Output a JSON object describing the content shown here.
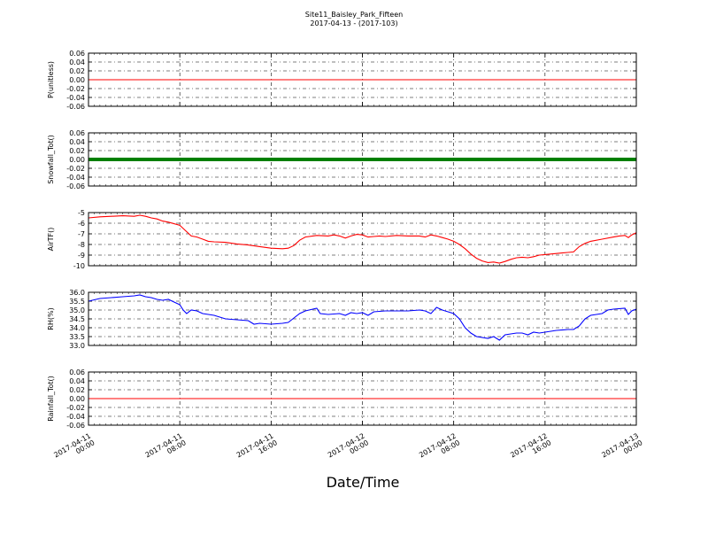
{
  "figure": {
    "title_line1": "Site11_Baisley_Park_Fifteen",
    "title_line2": "2017-04-13 - (2017-103)",
    "xlabel": "Date/Time"
  },
  "chart_data": {
    "type": "line",
    "x_range": [
      "2017-04-11 00:00",
      "2017-04-13 00:00"
    ],
    "x_ticks": [
      {
        "line1": "2017-04-11",
        "line2": "00:00",
        "hours": 0
      },
      {
        "line1": "2017-04-11",
        "line2": "08:00",
        "hours": 8
      },
      {
        "line1": "2017-04-11",
        "line2": "16:00",
        "hours": 16
      },
      {
        "line1": "2017-04-12",
        "line2": "00:00",
        "hours": 24
      },
      {
        "line1": "2017-04-12",
        "line2": "08:00",
        "hours": 32
      },
      {
        "line1": "2017-04-12",
        "line2": "16:00",
        "hours": 40
      },
      {
        "line1": "2017-04-13",
        "line2": "00:00",
        "hours": 48
      }
    ],
    "panels": [
      {
        "ylabel": "P(unitless)",
        "ylim": [
          -0.06,
          0.06
        ],
        "yticks": [
          "0.06",
          "0.04",
          "0.02",
          "0.00",
          "-0.02",
          "-0.04",
          "-0.06"
        ],
        "color": "#ff0000",
        "style": "line",
        "series": [
          [
            0,
            0
          ],
          [
            48,
            0
          ]
        ]
      },
      {
        "ylabel": "Snowfall_Tot()",
        "ylim": [
          -0.06,
          0.06
        ],
        "yticks": [
          "0.06",
          "0.04",
          "0.02",
          "0.00",
          "-0.02",
          "-0.04",
          "-0.06"
        ],
        "color": "#007f00",
        "style": "thick",
        "series": [
          [
            0,
            0
          ],
          [
            48,
            0
          ]
        ]
      },
      {
        "ylabel": "AirTF()",
        "ylim": [
          -10,
          -5
        ],
        "yticks": [
          "-5",
          "-6",
          "-7",
          "-8",
          "-9",
          "-10"
        ],
        "color": "#ff0000",
        "style": "line",
        "series": [
          [
            0,
            -5.5
          ],
          [
            1,
            -5.4
          ],
          [
            2,
            -5.35
          ],
          [
            3,
            -5.3
          ],
          [
            4,
            -5.35
          ],
          [
            4.5,
            -5.25
          ],
          [
            5,
            -5.35
          ],
          [
            5.5,
            -5.5
          ],
          [
            6,
            -5.6
          ],
          [
            6.5,
            -5.8
          ],
          [
            7,
            -5.9
          ],
          [
            8,
            -6.2
          ],
          [
            8.5,
            -6.7
          ],
          [
            9,
            -7.2
          ],
          [
            9.5,
            -7.3
          ],
          [
            10,
            -7.5
          ],
          [
            10.5,
            -7.7
          ],
          [
            11,
            -7.75
          ],
          [
            12,
            -7.8
          ],
          [
            13,
            -7.95
          ],
          [
            14,
            -8.05
          ],
          [
            15,
            -8.2
          ],
          [
            16,
            -8.35
          ],
          [
            17,
            -8.4
          ],
          [
            17.5,
            -8.35
          ],
          [
            18,
            -8.1
          ],
          [
            18.5,
            -7.6
          ],
          [
            19,
            -7.3
          ],
          [
            20,
            -7.15
          ],
          [
            21,
            -7.2
          ],
          [
            21.5,
            -7.1
          ],
          [
            22,
            -7.2
          ],
          [
            22.5,
            -7.4
          ],
          [
            23,
            -7.2
          ],
          [
            23.5,
            -7.05
          ],
          [
            24,
            -7.1
          ],
          [
            24.5,
            -7.3
          ],
          [
            25,
            -7.25
          ],
          [
            25.5,
            -7.2
          ],
          [
            26,
            -7.25
          ],
          [
            27,
            -7.15
          ],
          [
            28,
            -7.2
          ],
          [
            29,
            -7.2
          ],
          [
            29.5,
            -7.3
          ],
          [
            30,
            -7.1
          ],
          [
            30.5,
            -7.2
          ],
          [
            31,
            -7.35
          ],
          [
            31.5,
            -7.5
          ],
          [
            32,
            -7.7
          ],
          [
            32.5,
            -8.0
          ],
          [
            33,
            -8.4
          ],
          [
            33.5,
            -8.9
          ],
          [
            34,
            -9.3
          ],
          [
            34.5,
            -9.55
          ],
          [
            35,
            -9.7
          ],
          [
            35.5,
            -9.65
          ],
          [
            36,
            -9.75
          ],
          [
            36.5,
            -9.6
          ],
          [
            37,
            -9.4
          ],
          [
            37.5,
            -9.25
          ],
          [
            38,
            -9.2
          ],
          [
            38.5,
            -9.25
          ],
          [
            39,
            -9.15
          ],
          [
            39.5,
            -9.0
          ],
          [
            40,
            -8.95
          ],
          [
            40.5,
            -8.9
          ],
          [
            41,
            -8.85
          ],
          [
            41.5,
            -8.8
          ],
          [
            42,
            -8.75
          ],
          [
            42.5,
            -8.7
          ],
          [
            43,
            -8.2
          ],
          [
            43.5,
            -7.9
          ],
          [
            44,
            -7.7
          ],
          [
            45,
            -7.5
          ],
          [
            46,
            -7.3
          ],
          [
            46.5,
            -7.2
          ],
          [
            47,
            -7.15
          ],
          [
            47.3,
            -7.35
          ],
          [
            47.6,
            -7.1
          ],
          [
            48,
            -6.9
          ]
        ]
      },
      {
        "ylabel": "RH(%)",
        "ylim": [
          33.0,
          36.0
        ],
        "yticks": [
          "36.0",
          "35.5",
          "35.0",
          "34.5",
          "34.0",
          "33.5",
          "33.0"
        ],
        "color": "#0000ff",
        "style": "line",
        "series": [
          [
            0,
            35.5
          ],
          [
            1,
            35.65
          ],
          [
            2,
            35.7
          ],
          [
            3,
            35.75
          ],
          [
            4,
            35.8
          ],
          [
            4.5,
            35.85
          ],
          [
            5,
            35.75
          ],
          [
            5.5,
            35.7
          ],
          [
            6,
            35.6
          ],
          [
            6.5,
            35.55
          ],
          [
            7,
            35.6
          ],
          [
            7.5,
            35.45
          ],
          [
            8,
            35.3
          ],
          [
            8.3,
            35.0
          ],
          [
            8.6,
            34.8
          ],
          [
            9,
            35.0
          ],
          [
            9.5,
            34.95
          ],
          [
            10,
            34.8
          ],
          [
            11,
            34.7
          ],
          [
            12,
            34.5
          ],
          [
            13,
            34.45
          ],
          [
            14,
            34.4
          ],
          [
            14.5,
            34.2
          ],
          [
            15,
            34.25
          ],
          [
            16,
            34.2
          ],
          [
            17,
            34.25
          ],
          [
            17.5,
            34.3
          ],
          [
            18,
            34.55
          ],
          [
            18.5,
            34.8
          ],
          [
            19,
            34.95
          ],
          [
            20,
            35.1
          ],
          [
            20.3,
            34.8
          ],
          [
            21,
            34.75
          ],
          [
            22,
            34.8
          ],
          [
            22.5,
            34.7
          ],
          [
            23,
            34.85
          ],
          [
            23.5,
            34.8
          ],
          [
            24,
            34.85
          ],
          [
            24.5,
            34.7
          ],
          [
            25,
            34.9
          ],
          [
            26,
            34.95
          ],
          [
            27,
            34.95
          ],
          [
            28,
            34.95
          ],
          [
            29,
            35.0
          ],
          [
            29.5,
            34.95
          ],
          [
            30,
            34.8
          ],
          [
            30.5,
            35.15
          ],
          [
            31,
            35.0
          ],
          [
            31.5,
            34.9
          ],
          [
            32,
            34.8
          ],
          [
            32.5,
            34.5
          ],
          [
            33,
            34.0
          ],
          [
            33.5,
            33.7
          ],
          [
            34,
            33.5
          ],
          [
            35,
            33.4
          ],
          [
            35.5,
            33.5
          ],
          [
            36,
            33.3
          ],
          [
            36.5,
            33.6
          ],
          [
            37,
            33.65
          ],
          [
            37.5,
            33.7
          ],
          [
            38,
            33.7
          ],
          [
            38.5,
            33.6
          ],
          [
            39,
            33.75
          ],
          [
            39.5,
            33.7
          ],
          [
            40,
            33.75
          ],
          [
            40.5,
            33.8
          ],
          [
            41,
            33.85
          ],
          [
            42,
            33.9
          ],
          [
            42.5,
            33.9
          ],
          [
            43,
            34.1
          ],
          [
            43.5,
            34.5
          ],
          [
            44,
            34.7
          ],
          [
            44.5,
            34.75
          ],
          [
            45,
            34.8
          ],
          [
            45.5,
            35.0
          ],
          [
            46,
            35.05
          ],
          [
            47,
            35.1
          ],
          [
            47.3,
            34.75
          ],
          [
            47.6,
            34.95
          ],
          [
            48,
            35.05
          ]
        ]
      },
      {
        "ylabel": "Rainfall_Tot()",
        "ylim": [
          -0.06,
          0.06
        ],
        "yticks": [
          "0.06",
          "0.04",
          "0.02",
          "0.00",
          "-0.02",
          "-0.04",
          "-0.06"
        ],
        "color": "#ff0000",
        "style": "line",
        "series": [
          [
            0,
            0
          ],
          [
            48,
            0
          ]
        ]
      }
    ]
  }
}
